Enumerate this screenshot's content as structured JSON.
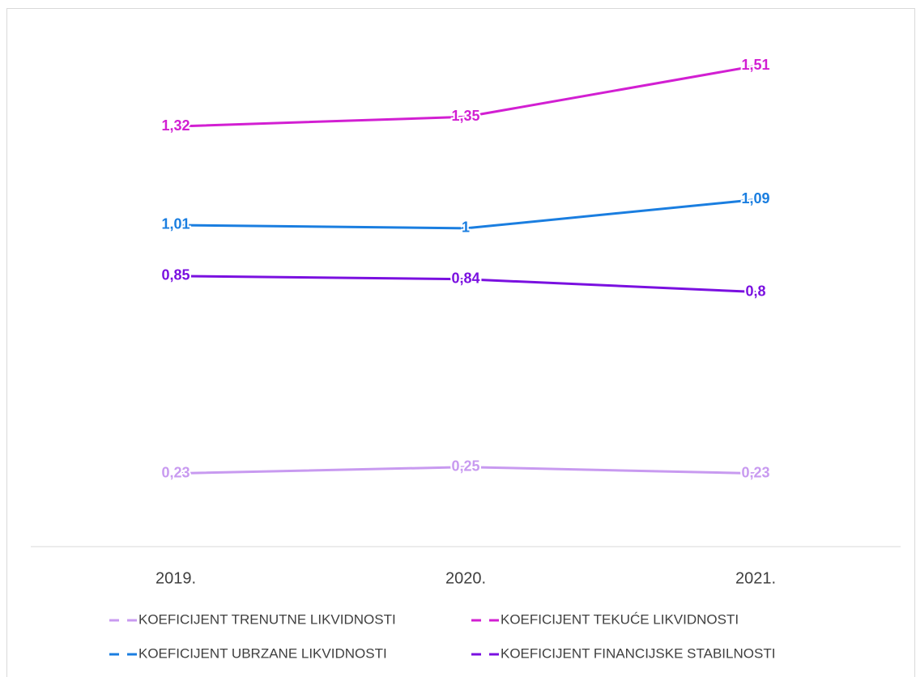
{
  "chart_data": {
    "type": "line",
    "categories": [
      "2019.",
      "2020.",
      "2021."
    ],
    "series": [
      {
        "name": "KOEFICIJENT TRENUTNE LIKVIDNOSTI",
        "color": "#c89af0",
        "values": [
          0.23,
          0.25,
          0.23
        ],
        "value_labels": [
          "0,23",
          "0,25",
          "0,23"
        ]
      },
      {
        "name": "KOEFICIJENT TEKUĆE LIKVIDNOSTI",
        "color": "#d21fd2",
        "values": [
          1.32,
          1.35,
          1.51
        ],
        "value_labels": [
          "1,32",
          "1,35",
          "1,51"
        ]
      },
      {
        "name": "KOEFICIJENT UBRZANE LIKVIDNOSTI",
        "color": "#1a7ee0",
        "values": [
          1.01,
          1,
          1.09
        ],
        "value_labels": [
          "1,01",
          "1",
          "1,09"
        ]
      },
      {
        "name": "KOEFICIJENT FINANCIJSKE STABILNOSTI",
        "color": "#7a10e0",
        "values": [
          0.85,
          0.84,
          0.8
        ],
        "value_labels": [
          "0,85",
          "0,84",
          "0,8"
        ]
      }
    ],
    "ylim": [
      0,
      1.6
    ],
    "legend": "bottom"
  }
}
